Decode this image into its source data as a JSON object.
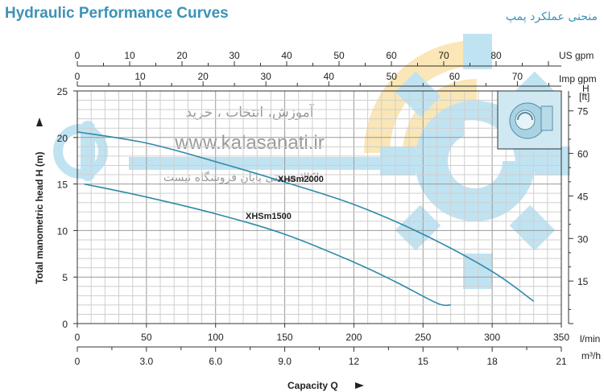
{
  "header": {
    "title_left": "Hydraulic Performance Curves",
    "title_right": "منحنی عملکرد پمپ"
  },
  "watermark": {
    "line1": "آموزش، انتخاب ، خرید",
    "line2": "www.kalasanati.ir",
    "line3": "کالا صنعتی پایان فروشگاه نیست!"
  },
  "chart_data": {
    "type": "line",
    "xlabel": "Capacity Q",
    "ylabel": "Total manometric head H (m)",
    "x_unit": "l/min",
    "x_unit_m3h": "m³/h",
    "x_unit_usgpm": "US gpm",
    "x_unit_impgpm": "Imp gpm",
    "y_right_unit_top": "H",
    "y_right_unit_bottom": "[ft]",
    "xlim": [
      0,
      350
    ],
    "ylim": [
      0,
      25
    ],
    "x_ticks": [
      0,
      50,
      100,
      150,
      200,
      250,
      300,
      350
    ],
    "y_ticks": [
      0,
      5,
      10,
      15,
      20,
      25
    ],
    "m3h_ticks": [
      "0",
      "3.0",
      "6.0",
      "9.0",
      "12",
      "15",
      "18",
      "21"
    ],
    "usgpm_ticks": [
      0,
      10,
      20,
      30,
      40,
      50,
      60,
      70,
      80
    ],
    "impgpm_ticks": [
      0,
      10,
      20,
      30,
      40,
      50,
      60,
      70
    ],
    "ft_ticks": [
      15,
      30,
      45,
      60,
      75
    ],
    "grid": true,
    "series": [
      {
        "name": "XHSm1500",
        "color": "#2f8aa8",
        "x": [
          5,
          50,
          100,
          150,
          200,
          230,
          260,
          270
        ],
        "y": [
          15.0,
          13.6,
          11.8,
          9.6,
          6.6,
          4.5,
          2.2,
          2.0
        ]
      },
      {
        "name": "XHSm2000",
        "color": "#2f8aa8",
        "x": [
          0,
          50,
          100,
          150,
          200,
          250,
          300,
          330
        ],
        "y": [
          20.6,
          19.4,
          17.4,
          15.2,
          12.8,
          9.6,
          5.6,
          2.4
        ]
      }
    ]
  }
}
